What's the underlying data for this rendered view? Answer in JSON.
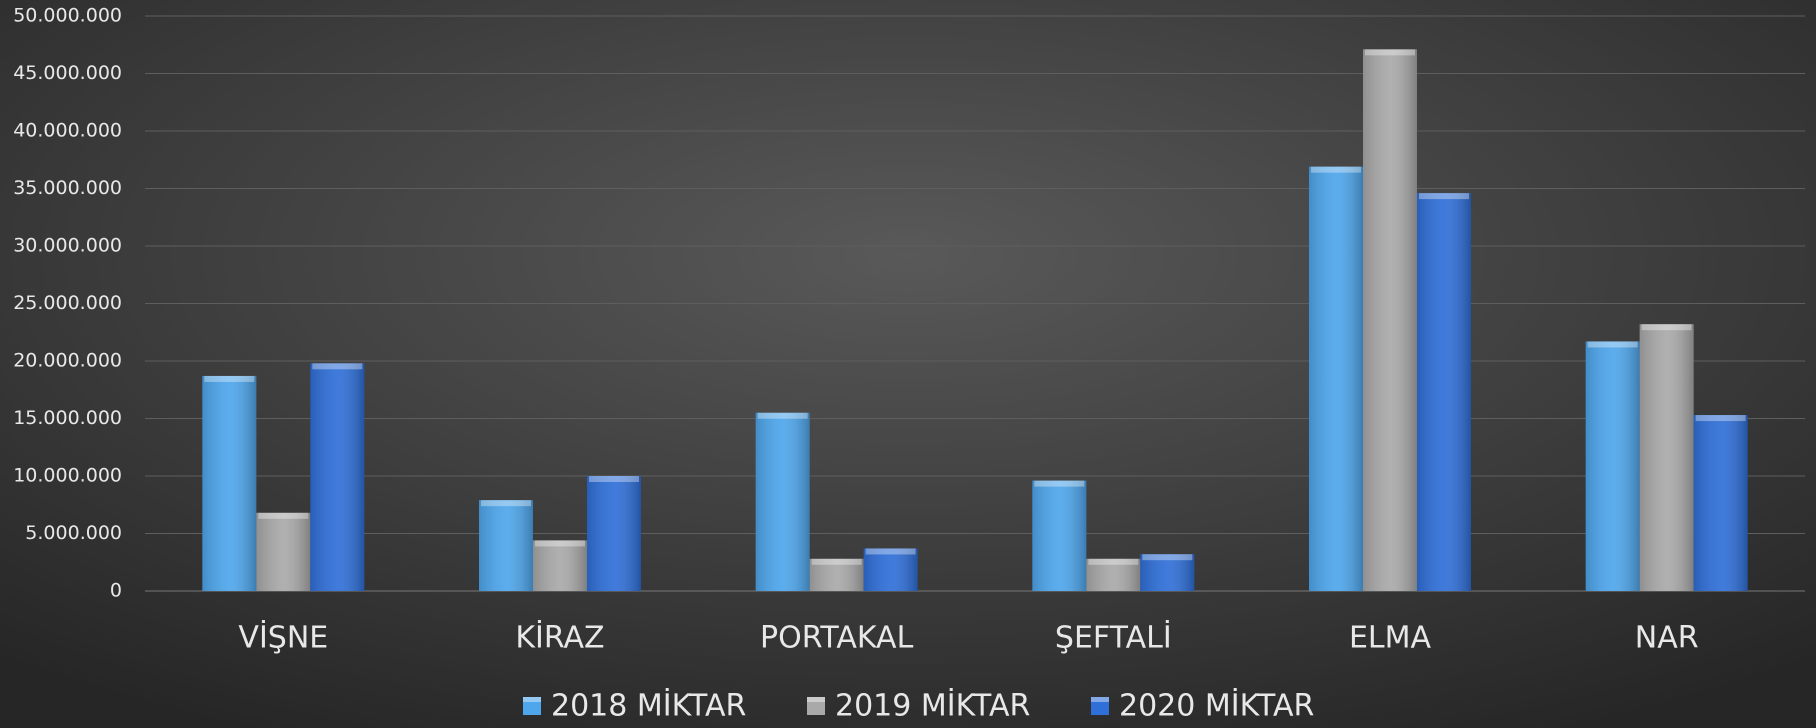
{
  "chart_data": {
    "type": "bar",
    "categories": [
      "VİŞNE",
      "KİRAZ",
      "PORTAKAL",
      "ŞEFTALİ",
      "ELMA",
      "NAR"
    ],
    "series": [
      {
        "name": "2018 MİKTAR",
        "color": "#4ea6ec",
        "values": [
          18700000,
          7900000,
          15500000,
          9600000,
          36900000,
          21700000
        ]
      },
      {
        "name": "2019 MİKTAR",
        "color": "#a9a9a9",
        "values": [
          6800000,
          4400000,
          2800000,
          2800000,
          47100000,
          23200000
        ]
      },
      {
        "name": "2020 MİKTAR",
        "color": "#2f6fd8",
        "values": [
          19800000,
          10000000,
          3700000,
          3200000,
          34600000,
          15300000
        ]
      }
    ],
    "ylim": [
      0,
      50000000
    ],
    "yticks": [
      0,
      {
        "value": 5000000,
        "label": "5.000.000"
      },
      {
        "value": 10000000,
        "label": "10.000.000"
      },
      {
        "value": 15000000,
        "label": "15.000.000"
      },
      {
        "value": 20000000,
        "label": "20.000.000"
      },
      {
        "value": 25000000,
        "label": "25.000.000"
      },
      {
        "value": 30000000,
        "label": "30.000.000"
      },
      {
        "value": 35000000,
        "label": "35.000.000"
      },
      {
        "value": 40000000,
        "label": "40.000.000"
      },
      {
        "value": 45000000,
        "label": "45.000.000"
      },
      {
        "value": 50000000,
        "label": "50.000.000"
      }
    ],
    "grid": true,
    "legend": "bottom"
  }
}
